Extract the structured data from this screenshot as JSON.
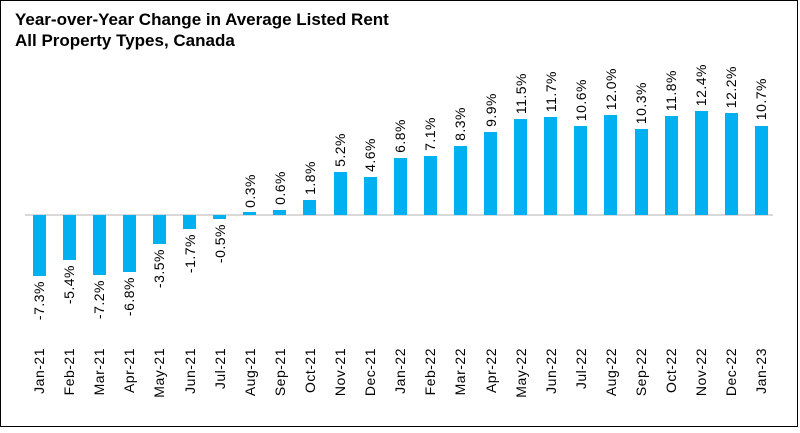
{
  "chart_data": {
    "type": "bar",
    "title": "Year-over-Year Change in Average Listed Rent",
    "subtitle": "All Property Types, Canada",
    "categories": [
      "Jan-21",
      "Feb-21",
      "Mar-21",
      "Apr-21",
      "May-21",
      "Jun-21",
      "Jul-21",
      "Aug-21",
      "Sep-21",
      "Oct-21",
      "Nov-21",
      "Dec-21",
      "Jan-22",
      "Feb-22",
      "Mar-22",
      "Apr-22",
      "May-22",
      "Jun-22",
      "Jul-22",
      "Aug-22",
      "Sep-22",
      "Oct-22",
      "Nov-22",
      "Dec-22",
      "Jan-23"
    ],
    "values": [
      -7.3,
      -5.4,
      -7.2,
      -6.8,
      -3.5,
      -1.7,
      -0.5,
      0.3,
      0.6,
      1.8,
      5.2,
      4.6,
      6.8,
      7.1,
      8.3,
      9.9,
      11.5,
      11.7,
      10.6,
      12.0,
      10.3,
      11.8,
      12.4,
      12.2,
      10.7
    ],
    "data_labels": [
      "-7.3%",
      "-5.4%",
      "-7.2%",
      "-6.8%",
      "-3.5%",
      "-1.7%",
      "-0.5%",
      "0.3%",
      "0.6%",
      "1.8%",
      "5.2%",
      "4.6%",
      "6.8%",
      "7.1%",
      "8.3%",
      "9.9%",
      "11.5%",
      "11.7%",
      "10.6%",
      "12.0%",
      "10.3%",
      "11.8%",
      "12.4%",
      "12.2%",
      "10.7%"
    ],
    "xlabel": "",
    "ylabel": "",
    "ylim": [
      -8,
      13.5
    ],
    "bar_color": "#00B0F0",
    "axis_line_color": "#D9D9D9",
    "text_color": "#000000",
    "grid": "off",
    "legend_position": "none",
    "value_label_rotation": 90,
    "category_label_rotation": 90
  }
}
